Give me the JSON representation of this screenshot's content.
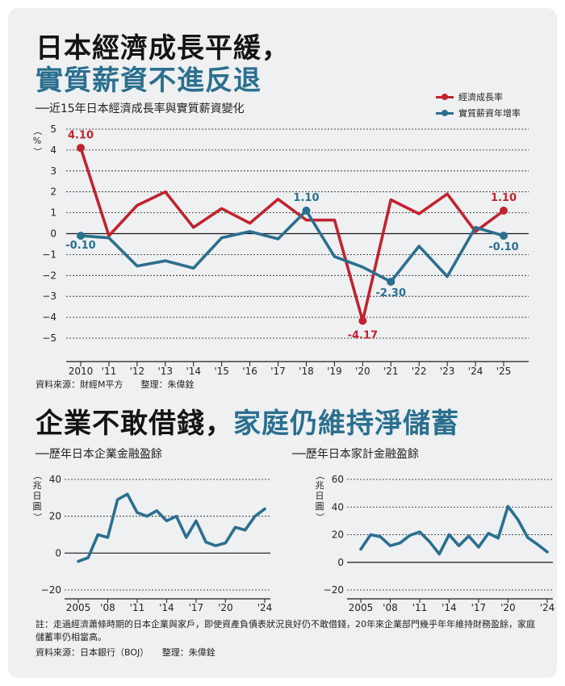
{
  "title": {
    "line1": "日本經濟成長平緩，",
    "line2": "實質薪資不進反退",
    "subtitle": "──近15年日本經濟成長率與實質薪資變化"
  },
  "source_top": "資料來源：財經M平方　　整理：朱偉銓",
  "title2": {
    "part1": "企業不敢借錢，",
    "part2": "家庭仍維持淨儲蓄"
  },
  "note": "註：走過經濟蕭條時期的日本企業與家戶，即使資產負債表狀況良好仍不敢借錢，20年來企業部門幾乎年年維持財務盈餘，家庭儲蓄率仍相當高。",
  "source_bottom": "資料來源：日本銀行（BOJ）　　整理：朱偉銓",
  "colors": {
    "red": "#c0242f",
    "blue": "#2b6f8e",
    "grid": "#1a1a1a"
  },
  "chart_data": [
    {
      "type": "line",
      "title": "──近15年日本經濟成長率與實質薪資變化",
      "ylabel": "（%）",
      "ylim": [
        -5,
        5
      ],
      "yticks": [
        5,
        4,
        3,
        2,
        1,
        0,
        -1,
        -2,
        -3,
        -4,
        -5
      ],
      "ytick_labels": [
        "5",
        "4",
        "3",
        "2",
        "1",
        "0",
        "−1",
        "−2",
        "−3",
        "−4",
        "−5"
      ],
      "x_labels": [
        "2010",
        "'11",
        "'12",
        "'13",
        "'14",
        "'15",
        "'16",
        "'17",
        "'18",
        "'19",
        "'20",
        "'21",
        "'22",
        "'23",
        "'24",
        "'25"
      ],
      "legend_position": "top-right",
      "series": [
        {
          "name": "經濟成長率",
          "color": "#c0242f",
          "values": [
            4.1,
            -0.1,
            1.35,
            2.0,
            0.3,
            1.2,
            0.5,
            1.65,
            0.65,
            0.65,
            -4.17,
            1.62,
            0.95,
            1.9,
            0.1,
            1.1
          ]
        },
        {
          "name": "實質薪資年增率",
          "color": "#2b6f8e",
          "values": [
            -0.1,
            -0.2,
            -1.55,
            -1.3,
            -1.65,
            -0.2,
            0.1,
            -0.25,
            1.1,
            -1.1,
            -1.6,
            -2.3,
            -0.6,
            -2.05,
            0.3,
            -0.1
          ]
        }
      ],
      "annotations": [
        {
          "series": 0,
          "index": 0,
          "text": "4.10"
        },
        {
          "series": 1,
          "index": 0,
          "text": "-0.10"
        },
        {
          "series": 1,
          "index": 8,
          "text": "1.10"
        },
        {
          "series": 0,
          "index": 10,
          "text": "-4.17"
        },
        {
          "series": 1,
          "index": 11,
          "text": "-2.30"
        },
        {
          "series": 0,
          "index": 15,
          "text": "1.10"
        },
        {
          "series": 1,
          "index": 15,
          "text": "-0.10"
        }
      ]
    },
    {
      "type": "line",
      "title": "──歷年日本企業金融盈餘",
      "ylabel": "（兆日圓）",
      "ylim": [
        -20,
        40
      ],
      "yticks": [
        40,
        20,
        0,
        -20
      ],
      "ytick_labels": [
        "40",
        "20",
        "0",
        "−20"
      ],
      "x_start": 2005,
      "x_end": 2024,
      "x_ticks": [
        2005,
        2008,
        2011,
        2014,
        2017,
        2020,
        2024
      ],
      "x_labels": [
        "2005",
        "'08",
        "'11",
        "'14",
        "'17",
        "'20",
        "'24"
      ],
      "series": [
        {
          "name": "企業金融盈餘",
          "color": "#2b6f8e",
          "values": [
            -4.5,
            -2.5,
            10,
            8.5,
            29,
            32,
            22,
            20,
            23,
            17.5,
            20,
            8.5,
            17.5,
            6,
            4,
            5.5,
            14,
            12.5,
            20,
            24
          ]
        }
      ]
    },
    {
      "type": "line",
      "title": "──歷年日本家計金融盈餘",
      "ylabel": "（兆日圓）",
      "ylim": [
        -20,
        60
      ],
      "yticks": [
        60,
        40,
        20,
        0,
        -20
      ],
      "ytick_labels": [
        "60",
        "40",
        "20",
        "0",
        "−20"
      ],
      "x_start": 2005,
      "x_end": 2024,
      "x_ticks": [
        2005,
        2008,
        2011,
        2014,
        2017,
        2020,
        2024
      ],
      "x_labels": [
        "2005",
        "'08",
        "'11",
        "'14",
        "'17",
        "'20",
        "'24"
      ],
      "series": [
        {
          "name": "家計金融盈餘",
          "color": "#2b6f8e",
          "values": [
            9.5,
            20,
            18.5,
            12,
            14,
            19.5,
            22,
            15,
            6,
            20,
            12,
            19,
            11,
            21,
            17.5,
            40.5,
            31,
            18,
            13,
            7.5
          ]
        }
      ]
    }
  ]
}
